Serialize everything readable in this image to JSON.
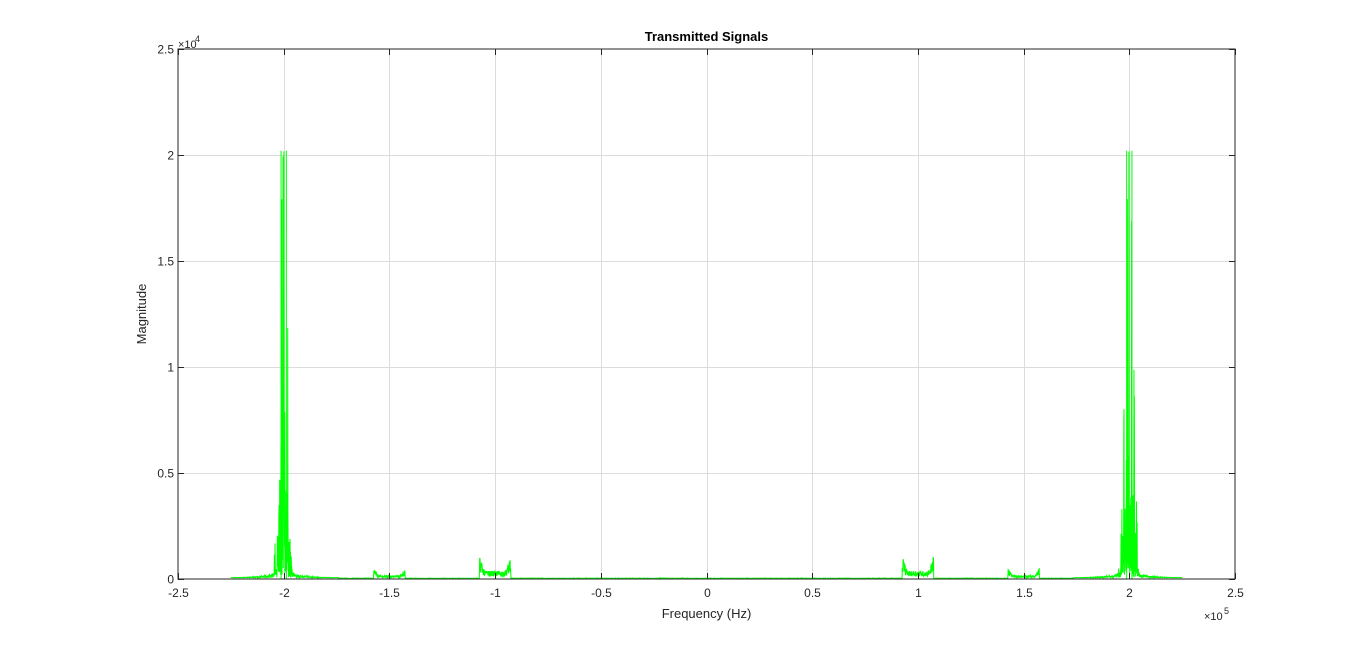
{
  "chart_data": {
    "type": "line",
    "title": "Transmitted Signals",
    "xlabel": "Frequency (Hz)",
    "ylabel": "Magnitude",
    "xlim": [
      -250000,
      250000
    ],
    "ylim": [
      0,
      25000
    ],
    "x_ticks": [
      -250000,
      -200000,
      -150000,
      -100000,
      -50000,
      0,
      50000,
      100000,
      150000,
      200000,
      250000
    ],
    "x_tick_labels": [
      "-2.5",
      "-2",
      "-1.5",
      "-1",
      "-0.5",
      "0",
      "0.5",
      "1",
      "1.5",
      "2",
      "2.5"
    ],
    "y_ticks": [
      0,
      5000,
      10000,
      15000,
      20000,
      25000
    ],
    "y_tick_labels": [
      "0",
      "0.5",
      "1",
      "1.5",
      "2",
      "2.5"
    ],
    "x_exponent_label": "×10",
    "x_exponent": "5",
    "y_exponent_label": "×10",
    "y_exponent": "4",
    "grid": true,
    "line_color": "#00ff00",
    "spectral_peaks": [
      {
        "center": -200000,
        "peak": 20200
      },
      {
        "center": -150000,
        "peak": 500
      },
      {
        "center": -100000,
        "peak": 1100
      },
      {
        "center": 100000,
        "peak": 1100
      },
      {
        "center": 150000,
        "peak": 500
      },
      {
        "center": 200000,
        "peak": 20200
      }
    ]
  }
}
